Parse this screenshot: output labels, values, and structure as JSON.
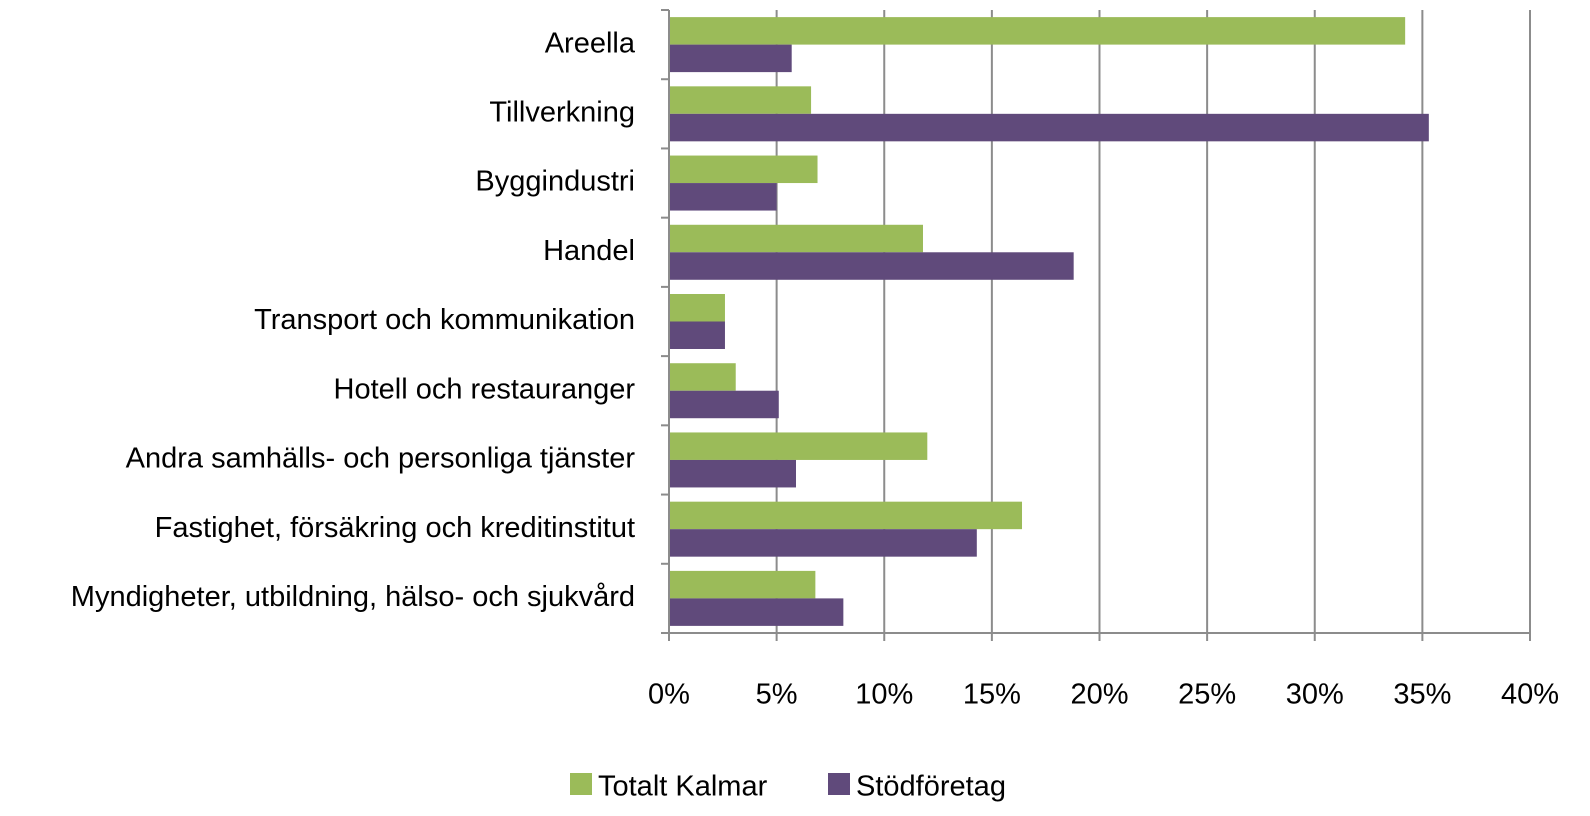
{
  "chart_data": {
    "type": "barh",
    "categories": [
      "Areella",
      "Tillverkning",
      "Byggindustri",
      "Handel",
      "Transport och kommunikation",
      "Hotell och restauranger",
      "Andra samhälls- och personliga tjänster",
      "Fastighet, försäkring och kreditinstitut",
      "Myndigheter, utbildning, hälso- och sjukvård"
    ],
    "series": [
      {
        "name": "Totalt Kalmar",
        "color": "#9bbb59",
        "values": [
          34.2,
          6.6,
          6.9,
          11.8,
          2.6,
          3.1,
          12.0,
          16.4,
          6.8
        ]
      },
      {
        "name": "Stödföretag",
        "color": "#604a7b",
        "values": [
          5.7,
          35.3,
          5.0,
          18.8,
          2.6,
          5.1,
          5.9,
          14.3,
          8.1
        ]
      }
    ],
    "xlim": [
      0,
      40
    ],
    "xticks": [
      {
        "value": 0,
        "label": "0%"
      },
      {
        "value": 5,
        "label": "5%"
      },
      {
        "value": 10,
        "label": "10%"
      },
      {
        "value": 15,
        "label": "15%"
      },
      {
        "value": 20,
        "label": "20%"
      },
      {
        "value": 25,
        "label": "25%"
      },
      {
        "value": 30,
        "label": "30%"
      },
      {
        "value": 35,
        "label": "35%"
      },
      {
        "value": 40,
        "label": "40%"
      }
    ],
    "grid": true,
    "legend": "bottom"
  }
}
